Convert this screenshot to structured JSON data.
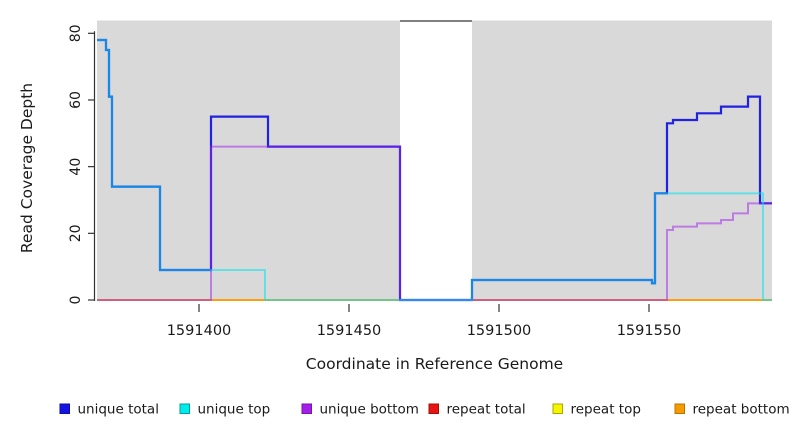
{
  "figure": {
    "x_axis_title": "Coordinate in Reference Genome",
    "y_axis_title": "Read Coverage Depth"
  },
  "chart_data": {
    "type": "line",
    "subtype": "step-coverage-plot",
    "title": "",
    "xlabel": "Coordinate in Reference Genome",
    "ylabel": "Read Coverage Depth",
    "x_range": [
      1591366,
      1591591
    ],
    "ylim": [
      0,
      84
    ],
    "x_ticks": [
      1591400,
      1591450,
      1591500,
      1591550
    ],
    "y_ticks": [
      0,
      20,
      40,
      60,
      80
    ],
    "grid": false,
    "panel_background": "#d9d9d9",
    "gap_top_border_color": "#808080",
    "axis_color": "#333333",
    "shaded_regions": [
      [
        1591366,
        1591467
      ],
      [
        1591491,
        1591591
      ]
    ],
    "gap_region": [
      1591467,
      1591491
    ],
    "series": [
      {
        "name": "repeat total",
        "color": "#e02020",
        "opacity": 1,
        "width": 1.8,
        "points": [
          [
            1591366,
            0
          ]
        ]
      },
      {
        "name": "repeat top",
        "color": "#eded00",
        "opacity": 1,
        "width": 1.8,
        "points": [
          [
            1591366,
            0
          ]
        ]
      },
      {
        "name": "repeat bottom",
        "color": "#ff9912",
        "opacity": 1,
        "width": 1.8,
        "points": [
          [
            1591366,
            0
          ]
        ]
      },
      {
        "name": "unique total",
        "color": "#2121e0",
        "opacity": 1,
        "width": 2.2,
        "points": [
          [
            1591366,
            78
          ],
          [
            1591369,
            75
          ],
          [
            1591370,
            61
          ],
          [
            1591371,
            34
          ],
          [
            1591387,
            9
          ],
          [
            1591404,
            55
          ],
          [
            1591423,
            46
          ],
          [
            1591467,
            0
          ],
          [
            1591491,
            6
          ],
          [
            1591551,
            5
          ],
          [
            1591552,
            32
          ],
          [
            1591556,
            53
          ],
          [
            1591558,
            54
          ],
          [
            1591566,
            56
          ],
          [
            1591574,
            58
          ],
          [
            1591583,
            61
          ],
          [
            1591587,
            29
          ]
        ]
      },
      {
        "name": "unique bottom",
        "color": "#a020f0",
        "opacity": 0.5,
        "width": 2,
        "points": [
          [
            1591366,
            0
          ],
          [
            1591404,
            46
          ],
          [
            1591467,
            0
          ],
          [
            1591556,
            21
          ],
          [
            1591558,
            22
          ],
          [
            1591566,
            23
          ],
          [
            1591574,
            24
          ],
          [
            1591578,
            26
          ],
          [
            1591583,
            29
          ]
        ]
      },
      {
        "name": "unique top",
        "color": "#00e5ee",
        "opacity": 0.55,
        "width": 2,
        "points": [
          [
            1591366,
            78
          ],
          [
            1591369,
            75
          ],
          [
            1591370,
            61
          ],
          [
            1591371,
            34
          ],
          [
            1591387,
            9
          ],
          [
            1591422,
            0
          ],
          [
            1591491,
            6
          ],
          [
            1591551,
            5
          ],
          [
            1591552,
            32
          ],
          [
            1591588,
            0
          ]
        ]
      }
    ],
    "legend": {
      "position": "bottom",
      "items": [
        {
          "label": "unique total",
          "fill": "#1414e6",
          "border": "#0d0da0"
        },
        {
          "label": "unique top",
          "fill": "#00ebeb",
          "border": "#009f9f"
        },
        {
          "label": "unique bottom",
          "fill": "#a31fe8",
          "border": "#7a12ad"
        },
        {
          "label": "repeat total",
          "fill": "#e81414",
          "border": "#a50d0d"
        },
        {
          "label": "repeat top",
          "fill": "#f5f500",
          "border": "#a8a800"
        },
        {
          "label": "repeat bottom",
          "fill": "#f59b00",
          "border": "#b87400"
        }
      ]
    }
  }
}
